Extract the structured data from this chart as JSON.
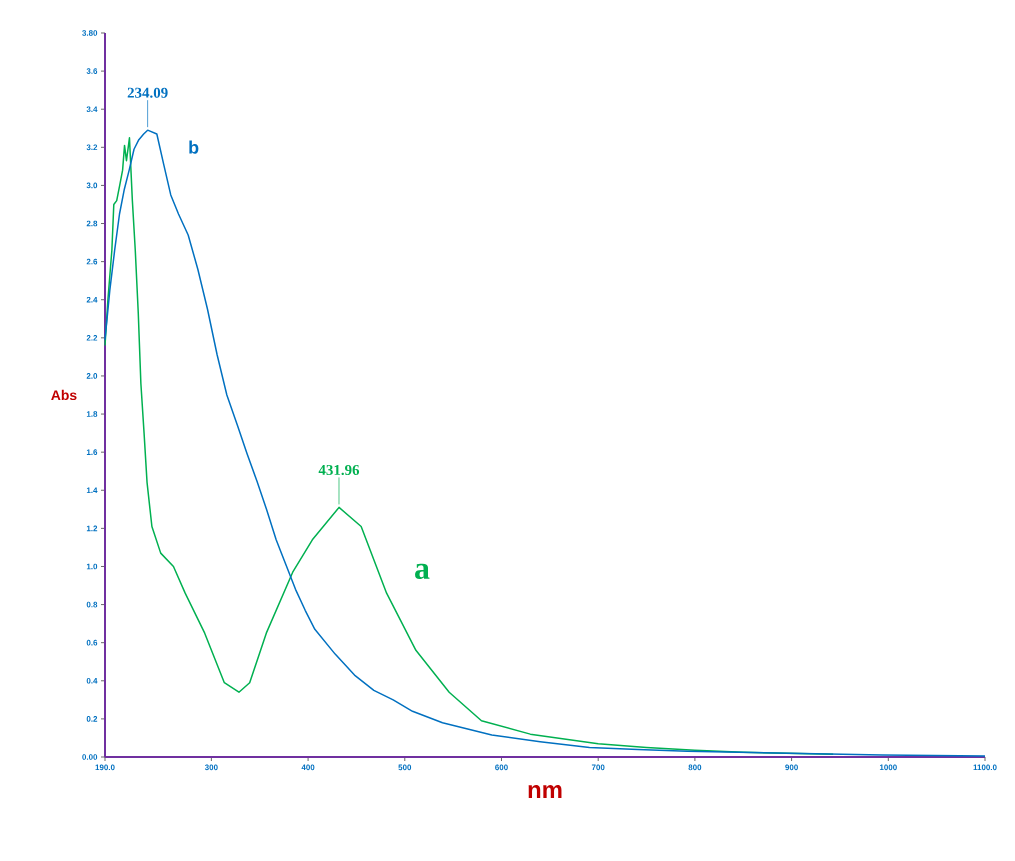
{
  "chart_data": {
    "type": "line",
    "xlabel": "nm",
    "ylabel": "Abs",
    "xlim": [
      190,
      1100
    ],
    "ylim": [
      0,
      3.8
    ],
    "xticks": [
      {
        "value": 190,
        "label": "190.0"
      },
      300,
      400,
      500,
      600,
      700,
      800,
      900,
      1000,
      {
        "value": 1100,
        "label": "1100.0"
      }
    ],
    "yticks": [
      {
        "value": 0,
        "label": "0.00"
      },
      0.2,
      0.4,
      0.6,
      0.8,
      {
        "value": 1,
        "label": "1.0"
      },
      1.2,
      1.4,
      1.6,
      1.8,
      {
        "value": 2,
        "label": "2.0"
      },
      2.2,
      2.4,
      2.6,
      2.8,
      {
        "value": 3,
        "label": "3.0"
      },
      3.2,
      3.4,
      3.6,
      {
        "value": 3.8,
        "label": "3.80"
      }
    ],
    "grid": false,
    "legend": false,
    "series": [
      {
        "name": "a",
        "color": "#00b050",
        "x": [
          190,
          193,
          197.1,
          199.1,
          202.1,
          205.2,
          208.2,
          210.2,
          212.2,
          215.3,
          218.3,
          221.3,
          224.4,
          227.1,
          230.4,
          233.5,
          238.5,
          247.6,
          260.8,
          272.9,
          293.1,
          313.4,
          328.5,
          339.6,
          356.8,
          384.1,
          404.4,
          432,
          454.9,
          481.2,
          511.5,
          545.9,
          579.3,
          629.8,
          700,
          750,
          800,
          850,
          943
        ],
        "values": [
          2.16,
          2.4,
          2.66,
          2.9,
          2.92,
          3.0,
          3.08,
          3.21,
          3.13,
          3.25,
          2.92,
          2.66,
          2.33,
          1.96,
          1.7,
          1.44,
          1.21,
          1.07,
          1.0,
          0.86,
          0.65,
          0.39,
          0.34,
          0.39,
          0.65,
          0.97,
          1.14,
          1.31,
          1.21,
          0.86,
          0.56,
          0.34,
          0.19,
          0.12,
          0.07,
          0.05,
          0.035,
          0.025,
          0.015
        ]
      },
      {
        "name": "b",
        "color": "#0070c0",
        "x": [
          190,
          195,
          200,
          205,
          210,
          215,
          220,
          225,
          230,
          234.1,
          243.6,
          250.7,
          258,
          266,
          276,
          286,
          296,
          306,
          316,
          327,
          337,
          347,
          357,
          367,
          377,
          387,
          397,
          407,
          428,
          448,
          468,
          488,
          508,
          539,
          590,
          640,
          691,
          741,
          792,
          893,
          994,
          1100
        ],
        "values": [
          2.19,
          2.45,
          2.66,
          2.85,
          2.98,
          3.08,
          3.19,
          3.24,
          3.27,
          3.29,
          3.27,
          3.11,
          2.95,
          2.85,
          2.74,
          2.56,
          2.35,
          2.11,
          1.9,
          1.74,
          1.59,
          1.45,
          1.3,
          1.14,
          1.01,
          0.88,
          0.77,
          0.67,
          0.54,
          0.43,
          0.35,
          0.3,
          0.24,
          0.18,
          0.115,
          0.08,
          0.05,
          0.04,
          0.03,
          0.02,
          0.01,
          0.005
        ]
      }
    ],
    "annotations": [
      {
        "text": "234.09",
        "x": 234.09,
        "y": 3.29
      },
      {
        "text": "431.96",
        "x": 431.96,
        "y": 1.31
      }
    ]
  }
}
